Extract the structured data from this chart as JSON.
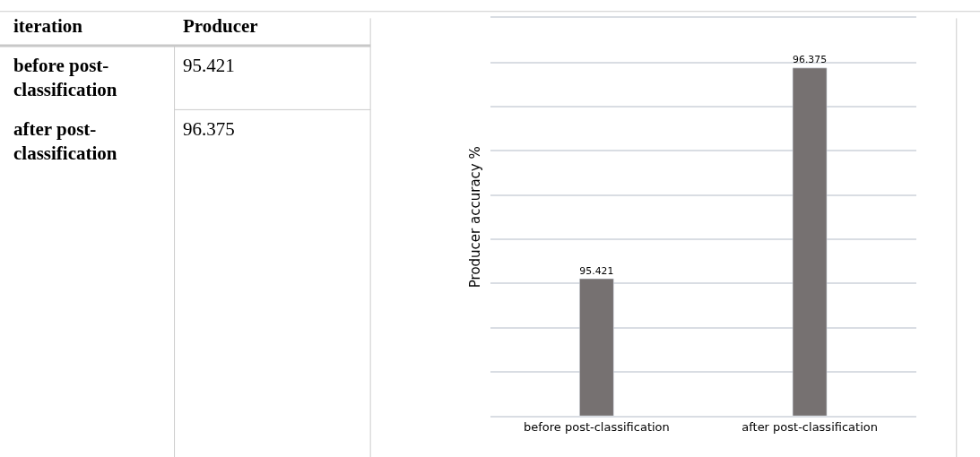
{
  "chart_data": {
    "type": "bar",
    "ylabel": "Producer accuracy %",
    "categories": [
      "before post-classification",
      "after post-classification"
    ],
    "values": [
      95.421,
      96.375
    ],
    "color": "#767171",
    "data_labels": true,
    "ylim": [
      94.8,
      96.6
    ],
    "yticks": [
      {
        "value": 94.8,
        "label": null
      },
      {
        "value": 95.0,
        "label": null
      },
      {
        "value": 95.2,
        "label": null
      },
      {
        "value": 95.4,
        "label": null
      },
      {
        "value": 95.6,
        "label": null
      },
      {
        "value": 95.8,
        "label": null
      },
      {
        "value": 96.0,
        "label": null
      },
      {
        "value": 96.2,
        "label": null
      },
      {
        "value": 96.4,
        "label": null
      },
      {
        "value": 96.6,
        "label": null
      }
    ],
    "grid": "y",
    "tick_labels": "x",
    "annotations": [
      "iteration",
      "Producer",
      "before post-classification",
      "95.421",
      "after post-classification",
      "96.375"
    ]
  }
}
